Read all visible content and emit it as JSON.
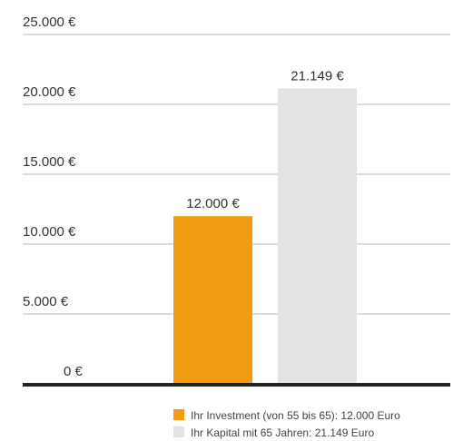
{
  "chart_data": {
    "type": "bar",
    "categories": [
      null
    ],
    "series": [
      {
        "name": "Ihr Investment (von 55 bis 65): 12.000 Euro",
        "color": "#f39c12",
        "values": [
          12000
        ],
        "value_labels": [
          "12.000 €"
        ]
      },
      {
        "name": "Ihr Kapital mit 65 Jahren: 21.149 Euro",
        "color": "#e3e3e3",
        "values": [
          21149
        ],
        "value_labels": [
          "21.149 €"
        ]
      }
    ],
    "ylim": [
      0,
      25000
    ],
    "yticks": [
      {
        "value": 0,
        "label": "0 €"
      },
      {
        "value": 5000,
        "label": "5.000 €"
      },
      {
        "value": 10000,
        "label": "10.000 €"
      },
      {
        "value": 15000,
        "label": "15.000 €"
      },
      {
        "value": 20000,
        "label": "20.000 €"
      },
      {
        "value": 25000,
        "label": "25.000 €"
      }
    ],
    "grid": true
  }
}
